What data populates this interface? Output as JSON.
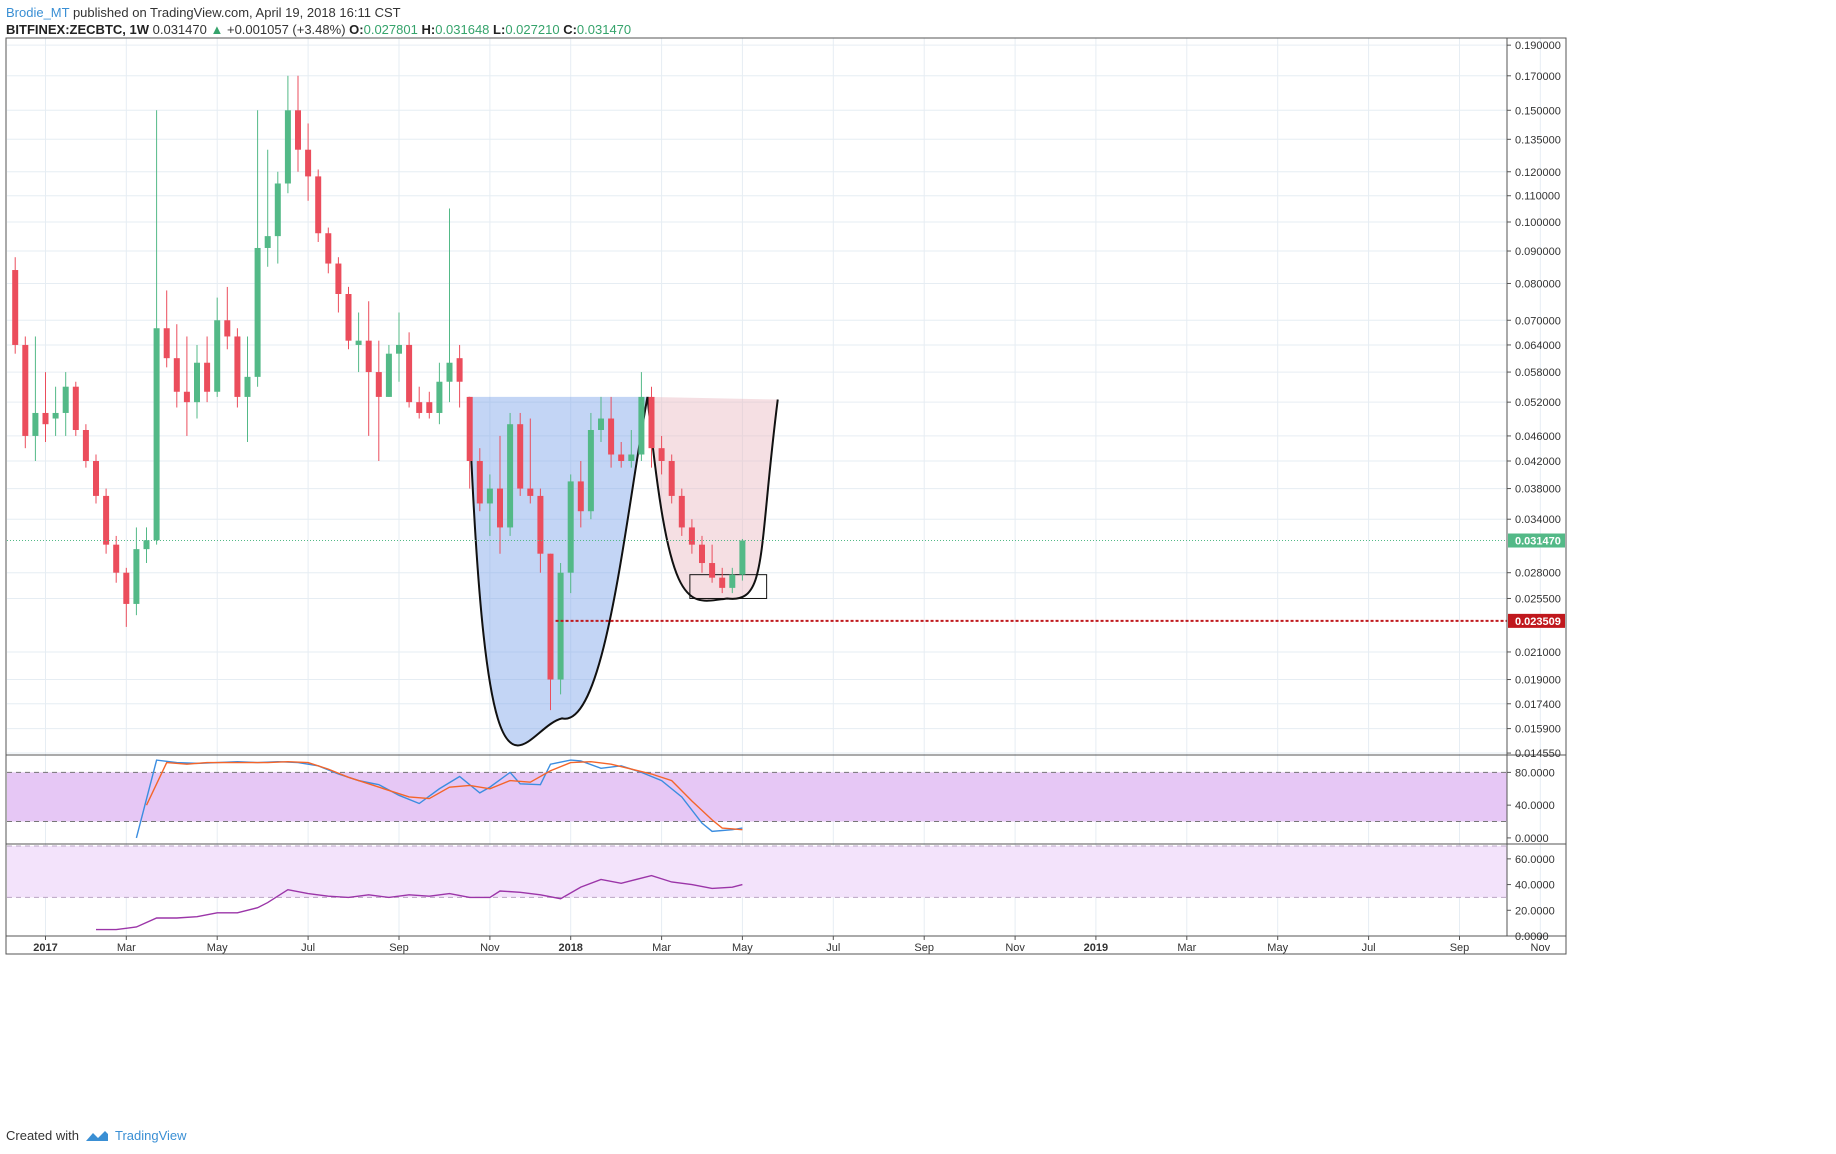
{
  "header": {
    "author": "Brodie_MT",
    "published_text": " published on TradingView.com, April 19, 2018 16:11 CST",
    "symbol": "BITFINEX:ZECBTC, 1W",
    "last": "0.031470",
    "change": "+0.001057 (+3.48%)",
    "o_label": "O:",
    "o_value": "0.027801",
    "h_label": "H:",
    "h_value": "0.031648",
    "l_label": "L:",
    "l_value": "0.027210",
    "c_label": "C:",
    "c_value": "0.031470"
  },
  "footer": {
    "created_with": "Created with",
    "brand": "TradingView"
  },
  "colors": {
    "up": "#53b987",
    "down": "#eb4d5c",
    "grid": "#e6edf3",
    "stoch_k": "#3b8de0",
    "stoch_d": "#f4652a",
    "rsi": "#9b35a8",
    "band_stoch": "#e6c7f5",
    "band_rsi": "#f3e3fb",
    "cup_blue": "#7aa2e8",
    "cup_red": "#e8b8c2",
    "last_price": "#53b987",
    "support_line": "#c0181d"
  },
  "chart_data": [
    {
      "type": "candlestick",
      "title": "BITFINEX:ZECBTC, 1W",
      "scale": "log",
      "ylim": [
        0.0145,
        0.195
      ],
      "y_ticks": [
        "0.190000",
        "0.170000",
        "0.150000",
        "0.135000",
        "0.120000",
        "0.110000",
        "0.100000",
        "0.090000",
        "0.080000",
        "0.070000",
        "0.064000",
        "0.058000",
        "0.052000",
        "0.046000",
        "0.042000",
        "0.038000",
        "0.034000",
        "0.028000",
        "0.025500",
        "0.021000",
        "0.019000",
        "0.017400",
        "0.015900",
        "0.014550"
      ],
      "x_ticks": [
        "2017",
        "Mar",
        "May",
        "Jul",
        "Sep",
        "Nov",
        "2018",
        "Mar",
        "May",
        "Jul",
        "Sep",
        "Nov",
        "2019",
        "Mar",
        "May",
        "Jul",
        "Sep",
        "Nov"
      ],
      "x_tick_weeks": [
        0,
        8,
        17,
        26,
        35,
        44,
        52,
        61,
        69,
        78,
        87,
        96,
        104,
        113,
        122,
        131,
        140,
        148
      ],
      "candles": [
        {
          "w": -3,
          "o": 0.084,
          "h": 0.088,
          "l": 0.062,
          "c": 0.064
        },
        {
          "w": -2,
          "o": 0.064,
          "h": 0.066,
          "l": 0.044,
          "c": 0.046
        },
        {
          "w": -1,
          "o": 0.046,
          "h": 0.066,
          "l": 0.042,
          "c": 0.05
        },
        {
          "w": 0,
          "o": 0.05,
          "h": 0.058,
          "l": 0.045,
          "c": 0.048
        },
        {
          "w": 1,
          "o": 0.049,
          "h": 0.055,
          "l": 0.046,
          "c": 0.05
        },
        {
          "w": 2,
          "o": 0.05,
          "h": 0.058,
          "l": 0.046,
          "c": 0.055
        },
        {
          "w": 3,
          "o": 0.055,
          "h": 0.056,
          "l": 0.046,
          "c": 0.047
        },
        {
          "w": 4,
          "o": 0.047,
          "h": 0.048,
          "l": 0.041,
          "c": 0.042
        },
        {
          "w": 5,
          "o": 0.042,
          "h": 0.043,
          "l": 0.036,
          "c": 0.037
        },
        {
          "w": 6,
          "o": 0.037,
          "h": 0.038,
          "l": 0.03,
          "c": 0.031
        },
        {
          "w": 7,
          "o": 0.031,
          "h": 0.032,
          "l": 0.027,
          "c": 0.028
        },
        {
          "w": 8,
          "o": 0.028,
          "h": 0.0285,
          "l": 0.023,
          "c": 0.025
        },
        {
          "w": 9,
          "o": 0.025,
          "h": 0.033,
          "l": 0.024,
          "c": 0.0305
        },
        {
          "w": 10,
          "o": 0.0305,
          "h": 0.033,
          "l": 0.029,
          "c": 0.0315
        },
        {
          "w": 11,
          "o": 0.0315,
          "h": 0.15,
          "l": 0.031,
          "c": 0.068
        },
        {
          "w": 12,
          "o": 0.068,
          "h": 0.078,
          "l": 0.059,
          "c": 0.061
        },
        {
          "w": 13,
          "o": 0.061,
          "h": 0.069,
          "l": 0.051,
          "c": 0.054
        },
        {
          "w": 14,
          "o": 0.054,
          "h": 0.066,
          "l": 0.046,
          "c": 0.052
        },
        {
          "w": 15,
          "o": 0.052,
          "h": 0.064,
          "l": 0.049,
          "c": 0.06
        },
        {
          "w": 16,
          "o": 0.06,
          "h": 0.066,
          "l": 0.052,
          "c": 0.054
        },
        {
          "w": 17,
          "o": 0.054,
          "h": 0.076,
          "l": 0.053,
          "c": 0.07
        },
        {
          "w": 18,
          "o": 0.07,
          "h": 0.079,
          "l": 0.063,
          "c": 0.066
        },
        {
          "w": 19,
          "o": 0.066,
          "h": 0.068,
          "l": 0.051,
          "c": 0.053
        },
        {
          "w": 20,
          "o": 0.053,
          "h": 0.066,
          "l": 0.045,
          "c": 0.057
        },
        {
          "w": 21,
          "o": 0.057,
          "h": 0.15,
          "l": 0.055,
          "c": 0.091
        },
        {
          "w": 22,
          "o": 0.091,
          "h": 0.13,
          "l": 0.085,
          "c": 0.095
        },
        {
          "w": 23,
          "o": 0.095,
          "h": 0.12,
          "l": 0.086,
          "c": 0.115
        },
        {
          "w": 24,
          "o": 0.115,
          "h": 0.17,
          "l": 0.111,
          "c": 0.15
        },
        {
          "w": 25,
          "o": 0.15,
          "h": 0.17,
          "l": 0.12,
          "c": 0.13
        },
        {
          "w": 26,
          "o": 0.13,
          "h": 0.143,
          "l": 0.108,
          "c": 0.118
        },
        {
          "w": 27,
          "o": 0.118,
          "h": 0.121,
          "l": 0.093,
          "c": 0.096
        },
        {
          "w": 28,
          "o": 0.096,
          "h": 0.098,
          "l": 0.083,
          "c": 0.086
        },
        {
          "w": 29,
          "o": 0.086,
          "h": 0.088,
          "l": 0.072,
          "c": 0.077
        },
        {
          "w": 30,
          "o": 0.077,
          "h": 0.079,
          "l": 0.063,
          "c": 0.065
        },
        {
          "w": 31,
          "o": 0.064,
          "h": 0.072,
          "l": 0.058,
          "c": 0.065
        },
        {
          "w": 32,
          "o": 0.065,
          "h": 0.075,
          "l": 0.046,
          "c": 0.058
        },
        {
          "w": 33,
          "o": 0.058,
          "h": 0.065,
          "l": 0.042,
          "c": 0.053
        },
        {
          "w": 34,
          "o": 0.053,
          "h": 0.064,
          "l": 0.053,
          "c": 0.062
        },
        {
          "w": 35,
          "o": 0.062,
          "h": 0.072,
          "l": 0.056,
          "c": 0.064
        },
        {
          "w": 36,
          "o": 0.064,
          "h": 0.067,
          "l": 0.051,
          "c": 0.052
        },
        {
          "w": 37,
          "o": 0.052,
          "h": 0.055,
          "l": 0.049,
          "c": 0.05
        },
        {
          "w": 38,
          "o": 0.052,
          "h": 0.054,
          "l": 0.049,
          "c": 0.05
        },
        {
          "w": 39,
          "o": 0.05,
          "h": 0.06,
          "l": 0.048,
          "c": 0.056
        },
        {
          "w": 40,
          "o": 0.056,
          "h": 0.105,
          "l": 0.052,
          "c": 0.06
        },
        {
          "w": 41,
          "o": 0.061,
          "h": 0.064,
          "l": 0.051,
          "c": 0.056
        },
        {
          "w": 42,
          "o": 0.053,
          "h": 0.053,
          "l": 0.038,
          "c": 0.042
        },
        {
          "w": 43,
          "o": 0.042,
          "h": 0.044,
          "l": 0.035,
          "c": 0.036
        },
        {
          "w": 44,
          "o": 0.036,
          "h": 0.04,
          "l": 0.032,
          "c": 0.038
        },
        {
          "w": 45,
          "o": 0.038,
          "h": 0.046,
          "l": 0.03,
          "c": 0.033
        },
        {
          "w": 46,
          "o": 0.033,
          "h": 0.05,
          "l": 0.032,
          "c": 0.048
        },
        {
          "w": 47,
          "o": 0.048,
          "h": 0.05,
          "l": 0.037,
          "c": 0.038
        },
        {
          "w": 48,
          "o": 0.038,
          "h": 0.049,
          "l": 0.036,
          "c": 0.037
        },
        {
          "w": 49,
          "o": 0.037,
          "h": 0.038,
          "l": 0.028,
          "c": 0.03
        },
        {
          "w": 50,
          "o": 0.03,
          "h": 0.03,
          "l": 0.017,
          "c": 0.019
        },
        {
          "w": 51,
          "o": 0.019,
          "h": 0.029,
          "l": 0.018,
          "c": 0.028
        },
        {
          "w": 52,
          "o": 0.028,
          "h": 0.04,
          "l": 0.026,
          "c": 0.039
        },
        {
          "w": 53,
          "o": 0.039,
          "h": 0.042,
          "l": 0.033,
          "c": 0.035
        },
        {
          "w": 54,
          "o": 0.035,
          "h": 0.05,
          "l": 0.034,
          "c": 0.047
        },
        {
          "w": 55,
          "o": 0.047,
          "h": 0.053,
          "l": 0.045,
          "c": 0.049
        },
        {
          "w": 56,
          "o": 0.049,
          "h": 0.053,
          "l": 0.041,
          "c": 0.043
        },
        {
          "w": 57,
          "o": 0.043,
          "h": 0.045,
          "l": 0.041,
          "c": 0.042
        },
        {
          "w": 58,
          "o": 0.042,
          "h": 0.047,
          "l": 0.041,
          "c": 0.043
        },
        {
          "w": 59,
          "o": 0.043,
          "h": 0.058,
          "l": 0.042,
          "c": 0.053
        },
        {
          "w": 60,
          "o": 0.053,
          "h": 0.055,
          "l": 0.041,
          "c": 0.044
        },
        {
          "w": 61,
          "o": 0.044,
          "h": 0.046,
          "l": 0.04,
          "c": 0.042
        },
        {
          "w": 62,
          "o": 0.042,
          "h": 0.043,
          "l": 0.036,
          "c": 0.037
        },
        {
          "w": 63,
          "o": 0.037,
          "h": 0.038,
          "l": 0.032,
          "c": 0.033
        },
        {
          "w": 64,
          "o": 0.033,
          "h": 0.034,
          "l": 0.03,
          "c": 0.031
        },
        {
          "w": 65,
          "o": 0.031,
          "h": 0.032,
          "l": 0.028,
          "c": 0.029
        },
        {
          "w": 66,
          "o": 0.029,
          "h": 0.031,
          "l": 0.027,
          "c": 0.0275
        },
        {
          "w": 67,
          "o": 0.0275,
          "h": 0.0285,
          "l": 0.026,
          "c": 0.0265
        },
        {
          "w": 68,
          "o": 0.0265,
          "h": 0.0285,
          "l": 0.026,
          "c": 0.0278
        },
        {
          "w": 69,
          "o": 0.0278,
          "h": 0.031648,
          "l": 0.02721,
          "c": 0.03147
        }
      ],
      "last_price": "0.031470",
      "support_level": "0.023509"
    },
    {
      "type": "line",
      "series": [
        {
          "stroke": "stoch_k",
          "x": [
            9,
            11,
            13,
            15,
            17,
            19,
            21,
            23,
            25,
            27,
            29,
            31,
            33,
            35,
            37,
            39,
            41,
            43,
            44,
            46,
            47,
            49,
            50,
            52,
            53,
            55,
            57,
            59,
            61,
            63,
            65,
            66,
            68,
            69
          ],
          "y": [
            0,
            95,
            92,
            91,
            92,
            93,
            92,
            93,
            92,
            88,
            78,
            70,
            65,
            52,
            42,
            60,
            75,
            55,
            62,
            80,
            66,
            65,
            90,
            95,
            94,
            85,
            88,
            80,
            70,
            50,
            18,
            8,
            10,
            12
          ]
        },
        {
          "stroke": "stoch_d",
          "x": [
            10,
            12,
            14,
            16,
            18,
            20,
            22,
            24,
            26,
            28,
            30,
            32,
            34,
            36,
            38,
            40,
            42,
            44,
            46,
            48,
            50,
            52,
            54,
            56,
            58,
            60,
            62,
            64,
            66,
            67,
            69
          ],
          "y": [
            40,
            92,
            90,
            92,
            92,
            92,
            92,
            93,
            92,
            84,
            74,
            66,
            58,
            50,
            48,
            62,
            64,
            60,
            70,
            68,
            82,
            92,
            93,
            90,
            84,
            78,
            70,
            45,
            22,
            12,
            10
          ]
        }
      ],
      "ylim": [
        -5,
        100
      ],
      "y_ticks": [
        "80.0000",
        "40.0000",
        "0.0000"
      ]
    },
    {
      "type": "line",
      "series": [
        {
          "stroke": "rsi",
          "x": [
            5,
            7,
            9,
            11,
            13,
            15,
            17,
            19,
            21,
            22,
            24,
            26,
            28,
            30,
            32,
            34,
            36,
            38,
            40,
            42,
            44,
            45,
            47,
            49,
            51,
            53,
            55,
            57,
            58,
            60,
            62,
            64,
            66,
            68,
            69
          ],
          "y": [
            5,
            5,
            7,
            14,
            14,
            15,
            18,
            18,
            22,
            26,
            36,
            33,
            31,
            30,
            32,
            30,
            32,
            31,
            33,
            30,
            30,
            35,
            34,
            32,
            29,
            38,
            44,
            41,
            43,
            47,
            42,
            40,
            37,
            38,
            40
          ]
        }
      ],
      "ylim": [
        0,
        70
      ],
      "y_ticks": [
        "60.0000",
        "40.0000",
        "20.0000",
        "0.0000"
      ]
    }
  ]
}
